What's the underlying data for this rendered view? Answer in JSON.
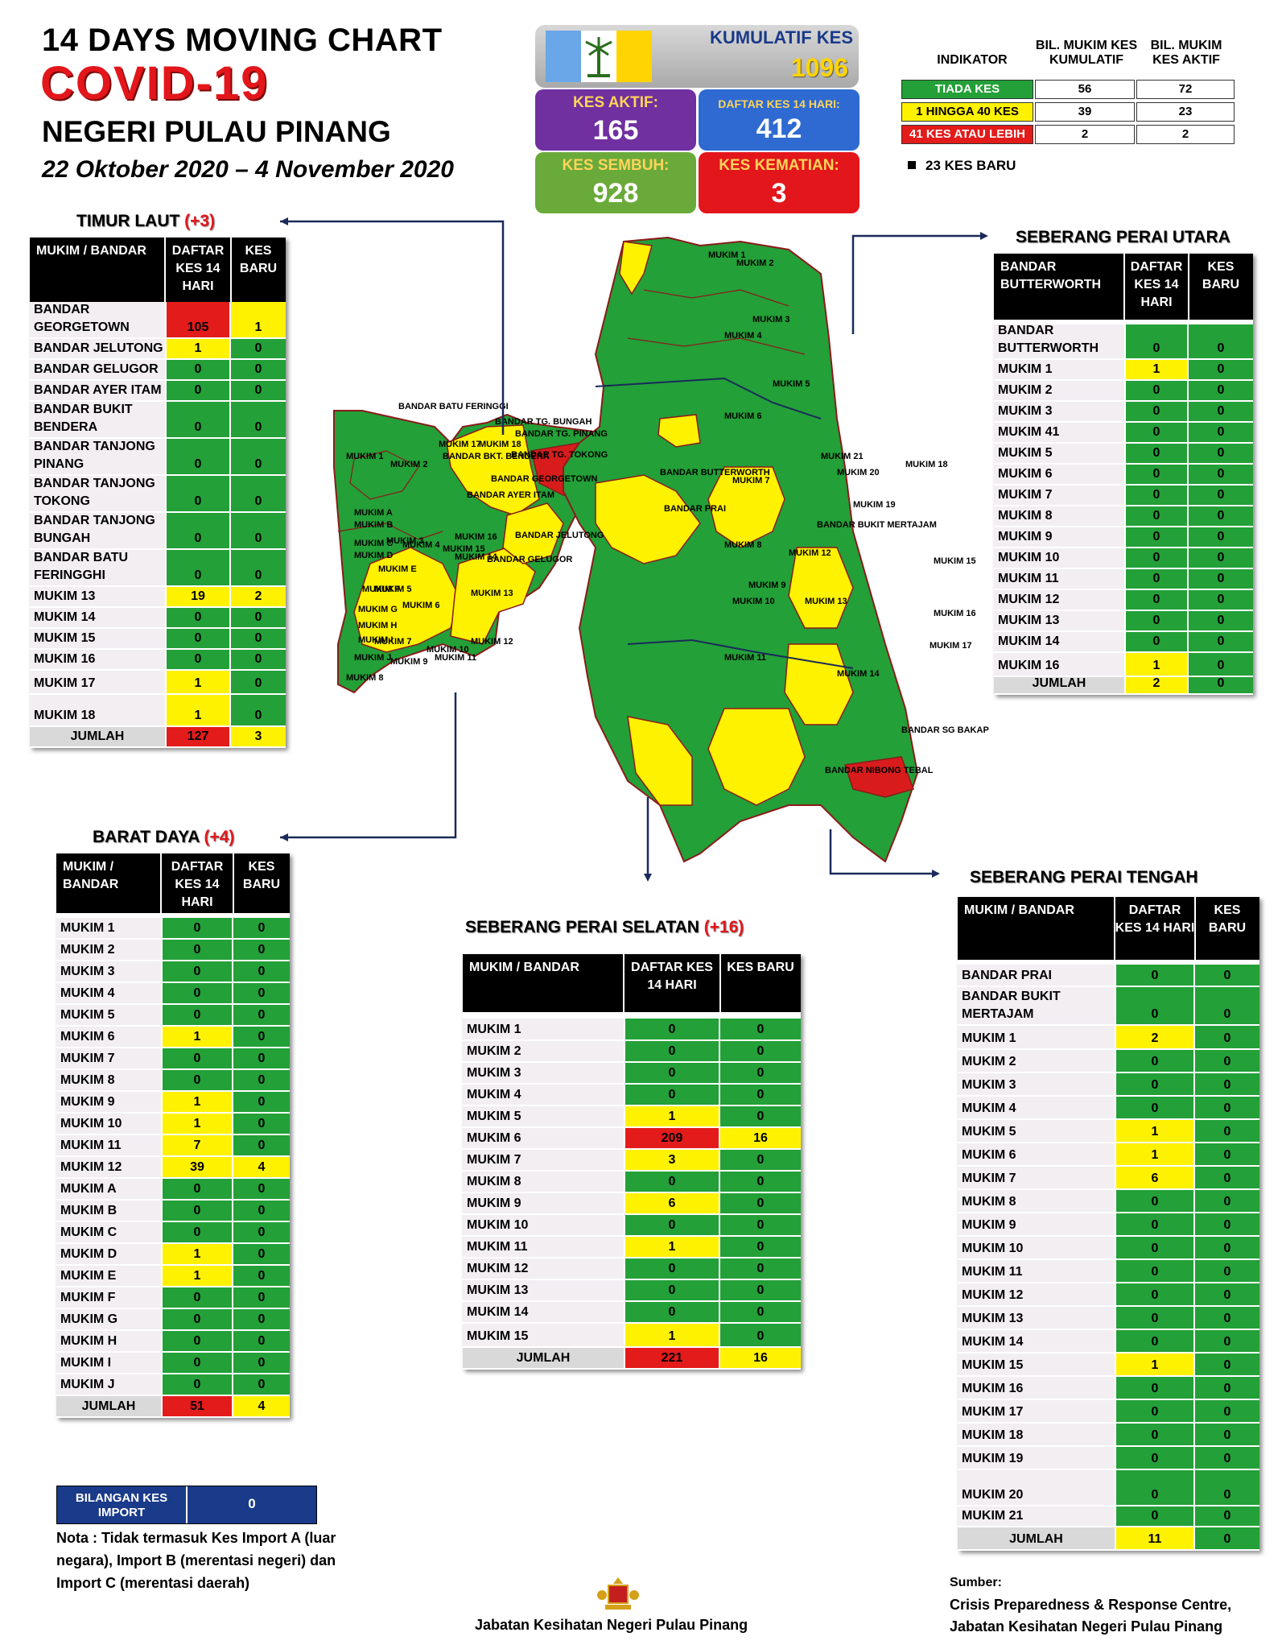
{
  "header": {
    "line1": "14  DAYS MOVING CHART",
    "line2": "COVID-19",
    "line3": "NEGERI PULAU PINANG",
    "date_range": "22 Oktober 2020 – 4 November 2020"
  },
  "summary": {
    "kumulatif_label": "KUMULATIF KES",
    "kumulatif_value": "1096",
    "aktif_label": "KES AKTIF:",
    "aktif_value": "165",
    "daftar_label": "DAFTAR KES 14 HARI:",
    "daftar_value": "412",
    "sembuh_label": "KES SEMBUH:",
    "sembuh_value": "928",
    "kematian_label": "KES KEMATIAN:",
    "kematian_value": "3",
    "colors": {
      "aktif": "#7030a0",
      "daftar": "#2e6ad1",
      "sembuh": "#6aaa3a",
      "kematian": "#e3161b"
    }
  },
  "indicator": {
    "h0": "INDIKATOR",
    "h1": "BIL. MUKIM KES KUMULATIF",
    "h2": "BIL. MUKIM KES AKTIF",
    "rows": [
      {
        "label": "TIADA KES",
        "kumulatif": "56",
        "aktif": "72",
        "color": "#23a038"
      },
      {
        "label": "1 HINGGA 40 KES",
        "kumulatif": "39",
        "aktif": "23",
        "color": "#fff200"
      },
      {
        "label": "41 KES ATAU LEBIH",
        "kumulatif": "2",
        "aktif": "2",
        "color": "#e31b1b"
      }
    ],
    "new_cases": "23 KES BARU"
  },
  "tables": {
    "timur_laut": {
      "title": "TIMUR LAUT",
      "inc": "(+3)",
      "h_name": "MUKIM / BANDAR",
      "h_daftar": "DAFTAR KES 14 HARI",
      "h_baru": "KES BARU",
      "rows": [
        {
          "name": "BANDAR GEORGETOWN",
          "daftar": "105",
          "baru": "1"
        },
        {
          "name": "BANDAR JELUTONG",
          "daftar": "1",
          "baru": "0"
        },
        {
          "name": "BANDAR GELUGOR",
          "daftar": "0",
          "baru": "0"
        },
        {
          "name": "BANDAR AYER ITAM",
          "daftar": "0",
          "baru": "0"
        },
        {
          "name": "BANDAR BUKIT BENDERA",
          "daftar": "0",
          "baru": "0"
        },
        {
          "name": "BANDAR TANJONG PINANG",
          "daftar": "0",
          "baru": "0"
        },
        {
          "name": "BANDAR TANJONG TOKONG",
          "daftar": "0",
          "baru": "0"
        },
        {
          "name": "BANDAR TANJONG BUNGAH",
          "daftar": "0",
          "baru": "0"
        },
        {
          "name": "BANDAR BATU FERINGGHI",
          "daftar": "0",
          "baru": "0"
        },
        {
          "name": "MUKIM 13",
          "daftar": "19",
          "baru": "2"
        },
        {
          "name": "MUKIM 14",
          "daftar": "0",
          "baru": "0"
        },
        {
          "name": "MUKIM 15",
          "daftar": "0",
          "baru": "0"
        },
        {
          "name": "MUKIM 16",
          "daftar": "0",
          "baru": "0"
        },
        {
          "name": "MUKIM 17",
          "daftar": "1",
          "baru": "0"
        },
        {
          "name": "MUKIM 18",
          "daftar": "1",
          "baru": "0"
        }
      ],
      "total_label": "JUMLAH",
      "total_daftar": "127",
      "total_baru": "3"
    },
    "barat_daya": {
      "title": "BARAT DAYA",
      "inc": "(+4)",
      "h_name": "MUKIM / BANDAR",
      "h_daftar": "DAFTAR KES 14 HARI",
      "h_baru": "KES BARU",
      "rows": [
        {
          "name": "MUKIM 1",
          "daftar": "0",
          "baru": "0"
        },
        {
          "name": "MUKIM 2",
          "daftar": "0",
          "baru": "0"
        },
        {
          "name": "MUKIM 3",
          "daftar": "0",
          "baru": "0"
        },
        {
          "name": "MUKIM 4",
          "daftar": "0",
          "baru": "0"
        },
        {
          "name": "MUKIM 5",
          "daftar": "0",
          "baru": "0"
        },
        {
          "name": "MUKIM 6",
          "daftar": "1",
          "baru": "0"
        },
        {
          "name": "MUKIM 7",
          "daftar": "0",
          "baru": "0"
        },
        {
          "name": "MUKIM 8",
          "daftar": "0",
          "baru": "0"
        },
        {
          "name": "MUKIM 9",
          "daftar": "1",
          "baru": "0"
        },
        {
          "name": "MUKIM 10",
          "daftar": "1",
          "baru": "0"
        },
        {
          "name": "MUKIM 11",
          "daftar": "7",
          "baru": "0"
        },
        {
          "name": "MUKIM 12",
          "daftar": "39",
          "baru": "4"
        },
        {
          "name": "MUKIM A",
          "daftar": "0",
          "baru": "0"
        },
        {
          "name": "MUKIM B",
          "daftar": "0",
          "baru": "0"
        },
        {
          "name": "MUKIM C",
          "daftar": "0",
          "baru": "0"
        },
        {
          "name": "MUKIM D",
          "daftar": "1",
          "baru": "0"
        },
        {
          "name": "MUKIM E",
          "daftar": "1",
          "baru": "0"
        },
        {
          "name": "MUKIM F",
          "daftar": "0",
          "baru": "0"
        },
        {
          "name": "MUKIM G",
          "daftar": "0",
          "baru": "0"
        },
        {
          "name": "MUKIM H",
          "daftar": "0",
          "baru": "0"
        },
        {
          "name": "MUKIM I",
          "daftar": "0",
          "baru": "0"
        },
        {
          "name": "MUKIM J",
          "daftar": "0",
          "baru": "0"
        }
      ],
      "total_label": "JUMLAH",
      "total_daftar": "51",
      "total_baru": "4"
    },
    "spu": {
      "title": "SEBERANG PERAI UTARA",
      "h_name": "BANDAR BUTTERWORTH",
      "h_daftar": "DAFTAR KES 14 HARI",
      "h_baru": "KES BARU",
      "rows": [
        {
          "name": "BANDAR BUTTERWORTH",
          "daftar": "0",
          "baru": "0"
        },
        {
          "name": "MUKIM 1",
          "daftar": "1",
          "baru": "0"
        },
        {
          "name": "MUKIM 2",
          "daftar": "0",
          "baru": "0"
        },
        {
          "name": "MUKIM 3",
          "daftar": "0",
          "baru": "0"
        },
        {
          "name": "MUKIM 41",
          "daftar": "0",
          "baru": "0"
        },
        {
          "name": "MUKIM 5",
          "daftar": "0",
          "baru": "0"
        },
        {
          "name": "MUKIM 6",
          "daftar": "0",
          "baru": "0"
        },
        {
          "name": "MUKIM 7",
          "daftar": "0",
          "baru": "0"
        },
        {
          "name": "MUKIM 8",
          "daftar": "0",
          "baru": "0"
        },
        {
          "name": "MUKIM 9",
          "daftar": "0",
          "baru": "0"
        },
        {
          "name": "MUKIM 10",
          "daftar": "0",
          "baru": "0"
        },
        {
          "name": "MUKIM 11",
          "daftar": "0",
          "baru": "0"
        },
        {
          "name": "MUKIM 12",
          "daftar": "0",
          "baru": "0"
        },
        {
          "name": "MUKIM 13",
          "daftar": "0",
          "baru": "0"
        },
        {
          "name": "MUKIM 14",
          "daftar": "0",
          "baru": "0"
        },
        {
          "name": "MUKIM 16",
          "daftar": "1",
          "baru": "0"
        }
      ],
      "total_label": "JUMLAH",
      "total_daftar": "2",
      "total_baru": "0"
    },
    "sps": {
      "title": "SEBERANG PERAI SELATAN",
      "inc": "(+16)",
      "h_name": "MUKIM / BANDAR",
      "h_daftar": "DAFTAR KES 14 HARI",
      "h_baru": "KES BARU",
      "rows": [
        {
          "name": "MUKIM 1",
          "daftar": "0",
          "baru": "0"
        },
        {
          "name": "MUKIM 2",
          "daftar": "0",
          "baru": "0"
        },
        {
          "name": "MUKIM 3",
          "daftar": "0",
          "baru": "0"
        },
        {
          "name": "MUKIM 4",
          "daftar": "0",
          "baru": "0"
        },
        {
          "name": "MUKIM 5",
          "daftar": "1",
          "baru": "0"
        },
        {
          "name": "MUKIM 6",
          "daftar": "209",
          "baru": "16"
        },
        {
          "name": "MUKIM 7",
          "daftar": "3",
          "baru": "0"
        },
        {
          "name": "MUKIM 8",
          "daftar": "0",
          "baru": "0"
        },
        {
          "name": "MUKIM 9",
          "daftar": "6",
          "baru": "0"
        },
        {
          "name": "MUKIM 10",
          "daftar": "0",
          "baru": "0"
        },
        {
          "name": "MUKIM 11",
          "daftar": "1",
          "baru": "0"
        },
        {
          "name": "MUKIM 12",
          "daftar": "0",
          "baru": "0"
        },
        {
          "name": "MUKIM 13",
          "daftar": "0",
          "baru": "0"
        },
        {
          "name": "MUKIM 14",
          "daftar": "0",
          "baru": "0"
        },
        {
          "name": "MUKIM 15",
          "daftar": "1",
          "baru": "0"
        }
      ],
      "total_label": "JUMLAH",
      "total_daftar": "221",
      "total_baru": "16"
    },
    "spt": {
      "title": "SEBERANG PERAI TENGAH",
      "h_name": "MUKIM / BANDAR",
      "h_daftar": "DAFTAR KES 14 HARI",
      "h_baru": "KES BARU",
      "rows": [
        {
          "name": "BANDAR PRAI",
          "daftar": "0",
          "baru": "0"
        },
        {
          "name": "BANDAR BUKIT MERTAJAM",
          "daftar": "0",
          "baru": "0"
        },
        {
          "name": "MUKIM 1",
          "daftar": "2",
          "baru": "0"
        },
        {
          "name": "MUKIM 2",
          "daftar": "0",
          "baru": "0"
        },
        {
          "name": "MUKIM 3",
          "daftar": "0",
          "baru": "0"
        },
        {
          "name": "MUKIM 4",
          "daftar": "0",
          "baru": "0"
        },
        {
          "name": "MUKIM 5",
          "daftar": "1",
          "baru": "0"
        },
        {
          "name": "MUKIM 6",
          "daftar": "1",
          "baru": "0"
        },
        {
          "name": "MUKIM 7",
          "daftar": "6",
          "baru": "0"
        },
        {
          "name": "MUKIM 8",
          "daftar": "0",
          "baru": "0"
        },
        {
          "name": "MUKIM 9",
          "daftar": "0",
          "baru": "0"
        },
        {
          "name": "MUKIM 10",
          "daftar": "0",
          "baru": "0"
        },
        {
          "name": "MUKIM 11",
          "daftar": "0",
          "baru": "0"
        },
        {
          "name": "MUKIM 12",
          "daftar": "0",
          "baru": "0"
        },
        {
          "name": "MUKIM 13",
          "daftar": "0",
          "baru": "0"
        },
        {
          "name": "MUKIM 14",
          "daftar": "0",
          "baru": "0"
        },
        {
          "name": "MUKIM 15",
          "daftar": "1",
          "baru": "0"
        },
        {
          "name": "MUKIM 16",
          "daftar": "0",
          "baru": "0"
        },
        {
          "name": "MUKIM 17",
          "daftar": "0",
          "baru": "0"
        },
        {
          "name": "MUKIM 18",
          "daftar": "0",
          "baru": "0"
        },
        {
          "name": "MUKIM 19",
          "daftar": "0",
          "baru": "0"
        },
        {
          "name": "MUKIM 20",
          "daftar": "0",
          "baru": "0"
        },
        {
          "name": "MUKIM 21",
          "daftar": "0",
          "baru": "0"
        }
      ],
      "total_label": "JUMLAH",
      "total_daftar": "11",
      "total_baru": "0"
    }
  },
  "import_box": {
    "label": "BILANGAN KES IMPORT",
    "value": "0"
  },
  "note": "Nota : Tidak termasuk Kes Import A (luar negara), Import B (merentasi negeri) dan Import C (merentasi daerah)",
  "footer": {
    "agency": "Jabatan Kesihatan Negeri Pulau Pinang",
    "source_label": "Sumber:",
    "source_line1": "Crisis Preparedness & Response Centre,",
    "source_line2": "Jabatan Kesihatan Negeri Pulau Pinang"
  },
  "map_labels": {
    "island": [
      "MUKIM 1",
      "MUKIM 2",
      "MUKIM 3",
      "MUKIM 4",
      "MUKIM 5",
      "MUKIM 6",
      "MUKIM 7",
      "MUKIM 8",
      "MUKIM 9",
      "MUKIM 10",
      "MUKIM 11",
      "MUKIM 12",
      "MUKIM 13",
      "MUKIM 14",
      "MUKIM 15",
      "MUKIM 16",
      "MUKIM 17",
      "MUKIM 18",
      "MUKIM A",
      "MUKIM B",
      "MUKIM C",
      "MUKIM D",
      "MUKIM E",
      "MUKIM F",
      "MUKIM G",
      "MUKIM H",
      "MUKIM I",
      "MUKIM J",
      "BANDAR BATU FERINGGI",
      "BANDAR TG. BUNGAH",
      "BANDAR TG. PINANG",
      "BANDAR TG. TOKONG",
      "BANDAR BKT. BENDERA",
      "BANDAR GEORGETOWN",
      "BANDAR AYER ITAM",
      "BANDAR JELUTONG",
      "BANDAR GELUGOR"
    ],
    "mainland": [
      "MUKIM 1",
      "MUKIM 2",
      "MUKIM 3",
      "MUKIM 4",
      "MUKIM 5",
      "MUKIM 6",
      "MUKIM 7",
      "MUKIM 8",
      "MUKIM 9",
      "MUKIM 10",
      "MUKIM 11",
      "MUKIM 12",
      "MUKIM 13",
      "MUKIM 14",
      "MUKIM 15",
      "MUKIM 16",
      "MUKIM 17",
      "MUKIM 18",
      "MUKIM 19",
      "MUKIM 20",
      "MUKIM 21",
      "BANDAR BUTTERWORTH",
      "BANDAR PRAI",
      "BANDAR BUKIT MERTAJAM",
      "BANDAR SG BAKAP",
      "BANDAR NIBONG TEBAL"
    ]
  }
}
